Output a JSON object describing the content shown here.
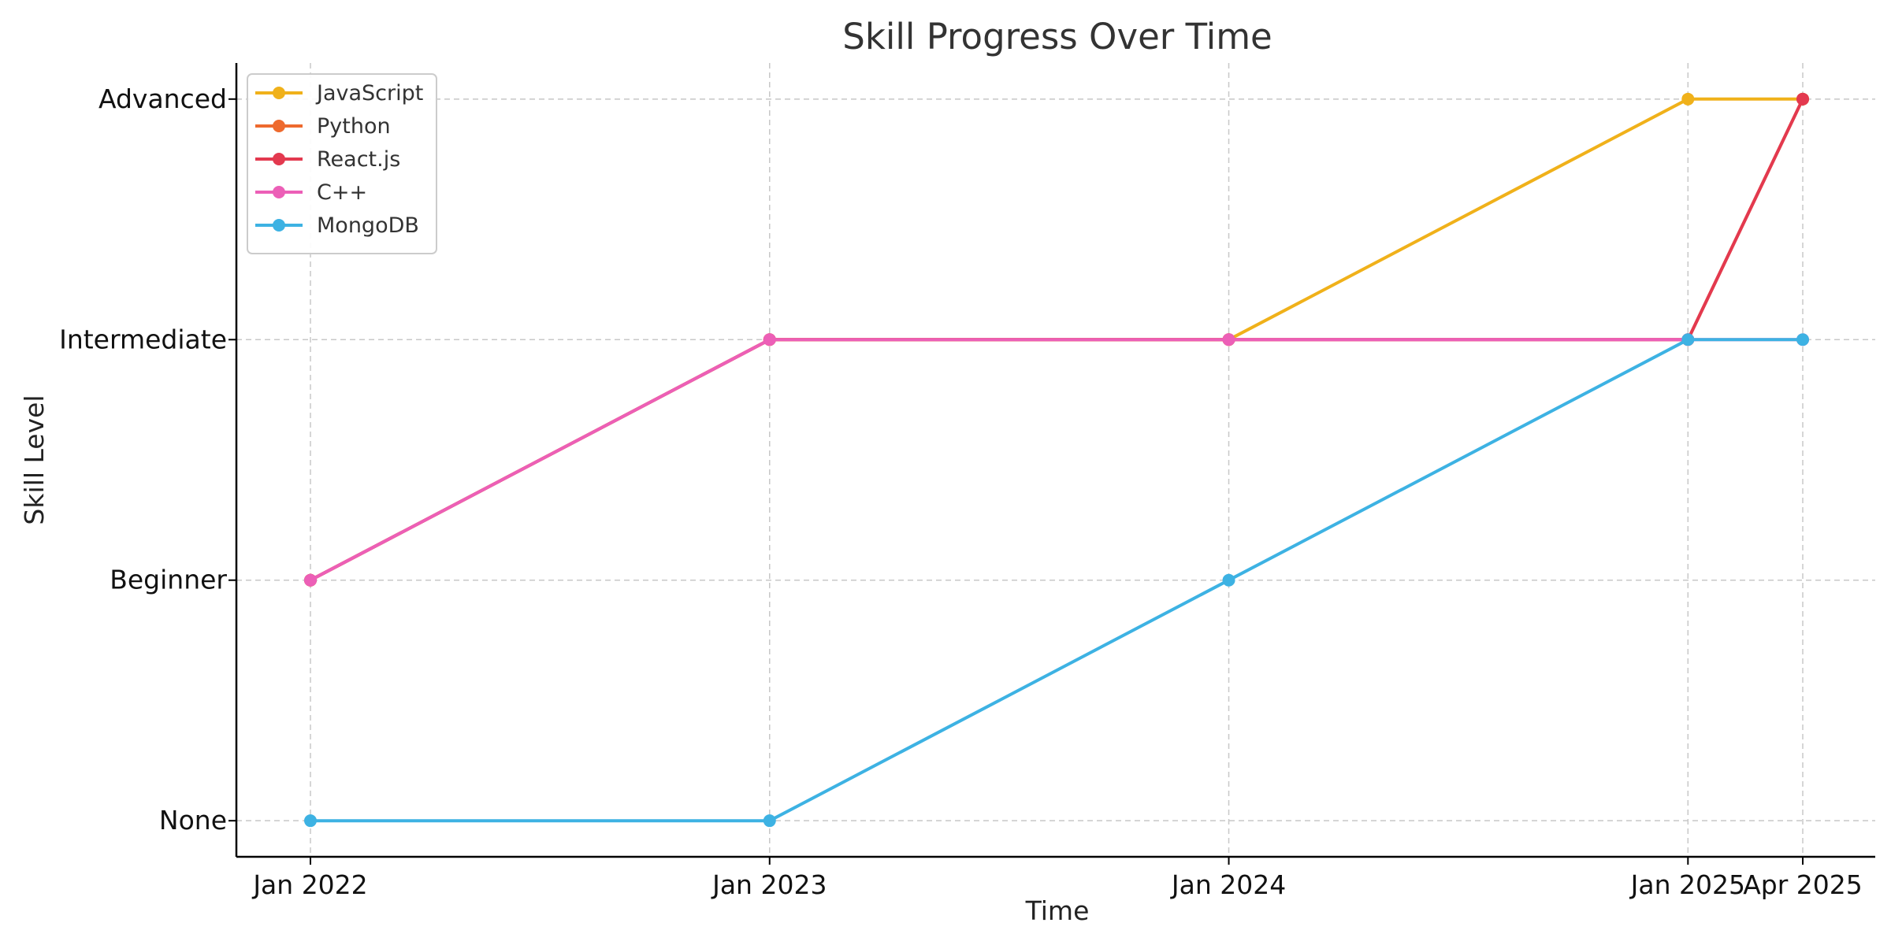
{
  "chart_data": {
    "type": "line",
    "title": "Skill Progress Over Time",
    "xlabel": "Time",
    "ylabel": "Skill Level",
    "x": [
      "Jan 2022",
      "Jan 2023",
      "Jan 2024",
      "Jan 2025",
      "Apr 2025"
    ],
    "x_dates": [
      "2022-01",
      "2023-01",
      "2024-01",
      "2025-01",
      "2025-04"
    ],
    "y_ticks": [
      "None",
      "Beginner",
      "Intermediate",
      "Advanced"
    ],
    "ylim": [
      -0.15,
      3.15
    ],
    "grid": true,
    "legend_position": "top-left",
    "series": [
      {
        "name": "JavaScript",
        "color": "#f0b11a",
        "values": [
          1,
          2,
          2,
          3,
          3
        ]
      },
      {
        "name": "Python",
        "color": "#ee6a2e",
        "values": [
          1,
          2,
          2,
          2,
          3
        ]
      },
      {
        "name": "React.js",
        "color": "#e3394f",
        "values": [
          1,
          2,
          2,
          2,
          3
        ]
      },
      {
        "name": "C++",
        "color": "#ec5fb7",
        "values": [
          1,
          2,
          2,
          2,
          2
        ]
      },
      {
        "name": "MongoDB",
        "color": "#3db2e3",
        "values": [
          0,
          0,
          1,
          2,
          2
        ]
      }
    ]
  }
}
